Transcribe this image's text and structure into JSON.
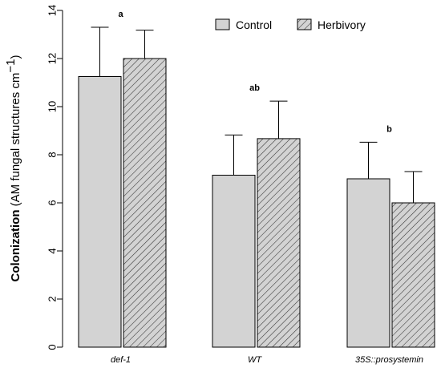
{
  "chart_data": {
    "type": "bar",
    "categories": [
      "def-1",
      "WT",
      "35S::prosystemin"
    ],
    "series": [
      {
        "name": "Control",
        "values": [
          11.25,
          7.15,
          7.0
        ],
        "error": [
          2.05,
          1.67,
          1.52
        ],
        "fill": "#d3d3d3",
        "pattern": "none"
      },
      {
        "name": "Herbivory",
        "values": [
          12.0,
          8.67,
          6.0
        ],
        "error": [
          1.18,
          1.56,
          1.3
        ],
        "fill": "#d3d3d3",
        "pattern": "diagonal-hatch"
      }
    ],
    "significance_labels": [
      "a",
      "ab",
      "b"
    ],
    "ylabel_bold": "Colonization",
    "ylabel_rest": " (AM fungal structures cm",
    "ylabel_sup": "−1",
    "ylabel_close": ")",
    "xlabel": "",
    "ylim": [
      0,
      14
    ],
    "yticks": [
      0,
      2,
      4,
      6,
      8,
      10,
      12,
      14
    ],
    "grid": false,
    "legend_position": "top-right"
  }
}
